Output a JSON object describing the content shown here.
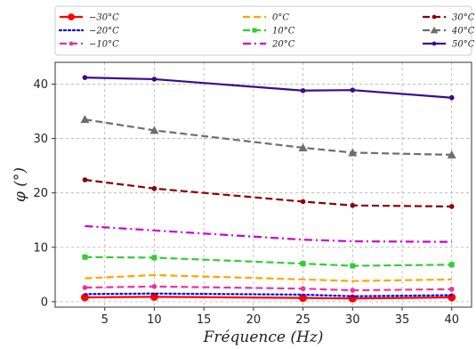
{
  "chart_data": {
    "type": "line",
    "xlabel": "Fréquence (Hz)",
    "ylabel": "φ (°)",
    "x": [
      3,
      10,
      25,
      30,
      40
    ],
    "xlim": [
      0,
      42
    ],
    "ylim": [
      -1,
      44
    ],
    "xticks": [
      5,
      10,
      15,
      20,
      25,
      30,
      35,
      40
    ],
    "yticks": [
      0,
      10,
      20,
      30,
      40
    ],
    "grid": true,
    "legend_position": "top, above plot, 3 columns",
    "series": [
      {
        "name": "−30°C",
        "values": [
          0.8,
          0.9,
          0.7,
          0.6,
          0.8
        ],
        "color": "#ff0000",
        "dash": "solid",
        "marker": "circle-large"
      },
      {
        "name": "−20°C",
        "values": [
          1.4,
          1.5,
          1.3,
          1.0,
          1.2
        ],
        "color": "#0000ee",
        "dash": "dotted",
        "marker": "none"
      },
      {
        "name": "−10°C",
        "values": [
          2.6,
          2.8,
          2.4,
          2.1,
          2.3
        ],
        "color": "#ee3399",
        "dash": "dashed",
        "marker": "circle"
      },
      {
        "name": "0°C",
        "values": [
          4.3,
          4.9,
          4.1,
          3.8,
          4.1
        ],
        "color": "#ffa500",
        "dash": "dashed",
        "marker": "none"
      },
      {
        "name": "10°C",
        "values": [
          8.2,
          8.1,
          7.0,
          6.6,
          6.8
        ],
        "color": "#33cc33",
        "dash": "dashed",
        "marker": "square"
      },
      {
        "name": "20°C",
        "values": [
          13.9,
          13.1,
          11.4,
          11.1,
          11.0
        ],
        "color": "#cc00cc",
        "dash": "dashdot",
        "marker": "none"
      },
      {
        "name": "30°C",
        "values": [
          22.4,
          20.8,
          18.4,
          17.7,
          17.5
        ],
        "color": "#8b0000",
        "dash": "dashed",
        "marker": "circle"
      },
      {
        "name": "40°C",
        "values": [
          33.5,
          31.5,
          28.3,
          27.4,
          27.0
        ],
        "color": "#6e6e6e",
        "dash": "dashed",
        "marker": "triangle"
      },
      {
        "name": "50°C",
        "values": [
          41.2,
          40.9,
          38.8,
          38.9,
          37.5
        ],
        "color": "#3d0a8a",
        "dash": "solid",
        "marker": "circle"
      }
    ]
  }
}
